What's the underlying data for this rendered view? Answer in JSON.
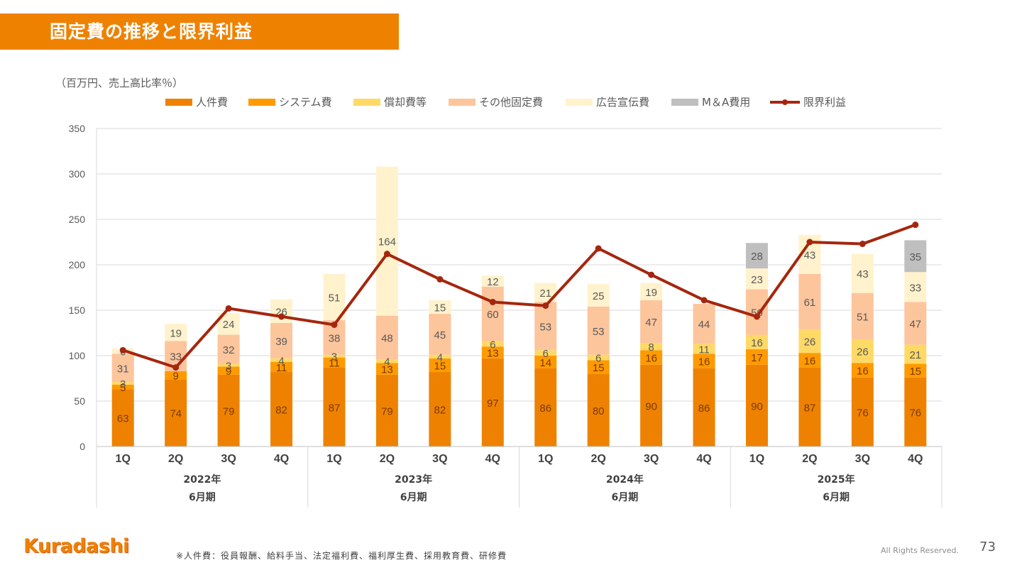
{
  "slide": {
    "title": "固定費の推移と限界利益",
    "unit_label": "（百万円、売上高比率％）",
    "logo_text": "Kuradashi",
    "footnote": "※人件費：役員報酬、給料手当、法定福利費、福利厚生費、採用教育費、研修費",
    "rights": "All Rights Reserved.",
    "page_number": "73"
  },
  "chart_data": {
    "type": "bar",
    "stacked": true,
    "ylim": [
      0,
      350
    ],
    "yticks": [
      0,
      50,
      100,
      150,
      200,
      250,
      300,
      350
    ],
    "grid": true,
    "legend_position": "top",
    "categories": [
      "1Q",
      "2Q",
      "3Q",
      "4Q",
      "1Q",
      "2Q",
      "3Q",
      "4Q",
      "1Q",
      "2Q",
      "3Q",
      "4Q",
      "1Q",
      "2Q",
      "3Q",
      "4Q"
    ],
    "groups": [
      {
        "year": "2022年",
        "period": "6月期"
      },
      {
        "year": "2023年",
        "period": "6月期"
      },
      {
        "year": "2024年",
        "period": "6月期"
      },
      {
        "year": "2025年",
        "period": "6月期"
      }
    ],
    "series": [
      {
        "name": "人件費",
        "color": "#ee8200",
        "values": [
          63,
          74,
          79,
          82,
          87,
          79,
          82,
          97,
          86,
          80,
          90,
          86,
          90,
          87,
          76,
          76
        ]
      },
      {
        "name": "システム費",
        "color": "#ff9a00",
        "values": [
          5,
          9,
          9,
          11,
          11,
          13,
          15,
          13,
          14,
          15,
          16,
          16,
          17,
          16,
          16,
          15
        ]
      },
      {
        "name": "償却費等",
        "color": "#ffd966",
        "values": [
          3,
          0,
          3,
          4,
          3,
          4,
          4,
          6,
          6,
          6,
          8,
          11,
          16,
          26,
          26,
          21
        ]
      },
      {
        "name": "その他固定費",
        "color": "#fdc59c",
        "values": [
          31,
          33,
          32,
          39,
          38,
          48,
          45,
          60,
          53,
          53,
          47,
          44,
          50,
          61,
          51,
          47
        ]
      },
      {
        "name": "広告宣伝費",
        "color": "#fff2cc",
        "values": [
          6,
          19,
          24,
          26,
          51,
          164,
          15,
          12,
          21,
          25,
          19,
          0,
          23,
          43,
          43,
          33
        ]
      },
      {
        "name": "M＆A費用",
        "color": "#bfbfbf",
        "values": [
          0,
          0,
          0,
          0,
          0,
          0,
          0,
          0,
          0,
          0,
          0,
          0,
          28,
          0,
          0,
          35
        ]
      }
    ],
    "line": {
      "name": "限界利益",
      "color": "#a5260e",
      "values": [
        106,
        87,
        152,
        143,
        134,
        212,
        184,
        159,
        155,
        218,
        189,
        161,
        143,
        225,
        223,
        244
      ]
    }
  }
}
